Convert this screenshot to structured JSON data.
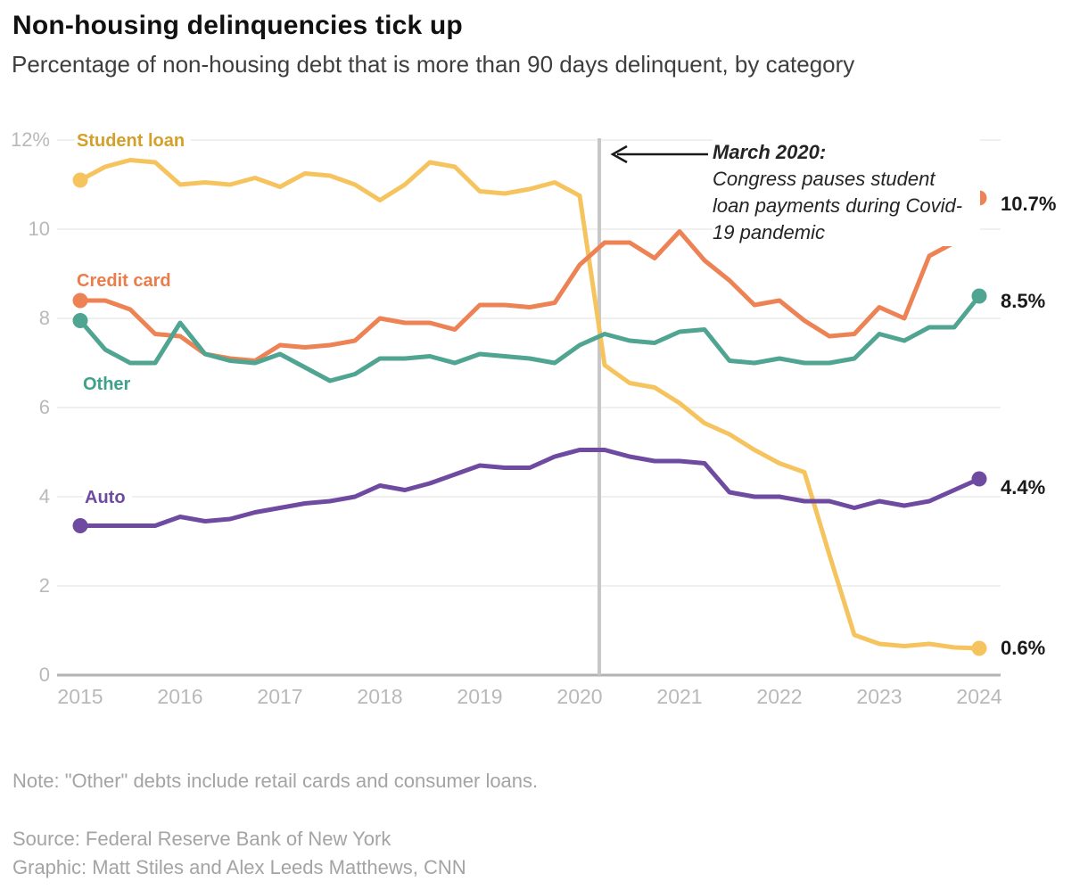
{
  "header": {
    "title": "Non-housing delinquencies tick up",
    "subtitle": "Percentage of non-housing debt that is more than 90 days delinquent, by category"
  },
  "chart_data": {
    "type": "line",
    "unit": "percent",
    "x_start": "2015 Q1",
    "x_end": "2024 Q1",
    "frequency": "quarterly",
    "grid": "horizontal-only",
    "x_axis": {
      "tick_labels": [
        "2015",
        "2016",
        "2017",
        "2018",
        "2019",
        "2020",
        "2021",
        "2022",
        "2023",
        "2024"
      ]
    },
    "y_axis": {
      "range": [
        0,
        12
      ],
      "ticks": [
        {
          "label": "12%",
          "value": 12
        },
        {
          "label": "10",
          "value": 10
        },
        {
          "label": "8",
          "value": 8
        },
        {
          "label": "6",
          "value": 6
        },
        {
          "label": "4",
          "value": 4
        },
        {
          "label": "2",
          "value": 2
        },
        {
          "label": "0",
          "value": 0
        }
      ]
    },
    "series": [
      {
        "name": "Student loan",
        "color": "#F6C45F",
        "label_color": "#D4A02A",
        "end_label": "0.6%",
        "values": [
          11.1,
          11.4,
          11.55,
          11.5,
          11.0,
          11.05,
          11.0,
          11.15,
          10.95,
          11.25,
          11.2,
          11.0,
          10.65,
          11.0,
          11.5,
          11.4,
          10.85,
          10.8,
          10.9,
          11.05,
          10.75,
          6.95,
          6.55,
          6.45,
          6.1,
          5.65,
          5.4,
          5.05,
          4.75,
          4.55,
          2.7,
          0.9,
          0.7,
          0.65,
          0.7,
          0.62,
          0.6
        ]
      },
      {
        "name": "Credit card",
        "color": "#ED8254",
        "label_color": "#EB7C4B",
        "end_label": "10.7%",
        "values": [
          8.4,
          8.4,
          8.2,
          7.65,
          7.6,
          7.2,
          7.1,
          7.05,
          7.4,
          7.35,
          7.4,
          7.5,
          8.0,
          7.9,
          7.9,
          7.75,
          8.3,
          8.3,
          8.25,
          8.35,
          9.2,
          9.7,
          9.7,
          9.35,
          9.95,
          9.3,
          8.85,
          8.3,
          8.4,
          7.95,
          7.6,
          7.65,
          8.25,
          8.0,
          9.4,
          9.7,
          10.7
        ]
      },
      {
        "name": "Other",
        "color": "#50A492",
        "label_color": "#3FA18B",
        "end_label": "8.5%",
        "values": [
          7.95,
          7.3,
          7.0,
          7.0,
          7.9,
          7.2,
          7.05,
          7.0,
          7.2,
          6.9,
          6.6,
          6.75,
          7.1,
          7.1,
          7.15,
          7.0,
          7.2,
          7.15,
          7.1,
          7.0,
          7.4,
          7.65,
          7.5,
          7.45,
          7.7,
          7.75,
          7.05,
          7.0,
          7.1,
          7.0,
          7.0,
          7.1,
          7.65,
          7.5,
          7.8,
          7.8,
          8.5
        ]
      },
      {
        "name": "Auto",
        "color": "#6E4AA1",
        "label_color": "#6E4AA1",
        "end_label": "4.4%",
        "values": [
          3.35,
          3.35,
          3.35,
          3.35,
          3.55,
          3.45,
          3.5,
          3.65,
          3.75,
          3.85,
          3.9,
          4.0,
          4.25,
          4.15,
          4.3,
          4.5,
          4.7,
          4.65,
          4.65,
          4.9,
          5.05,
          5.05,
          4.9,
          4.8,
          4.8,
          4.75,
          4.1,
          4.0,
          4.0,
          3.9,
          3.9,
          3.75,
          3.9,
          3.8,
          3.9,
          4.15,
          4.4
        ]
      }
    ],
    "annotation": {
      "heading": "March 2020:",
      "body": [
        "Congress pauses student",
        "loan payments during Covid-",
        "19 pandemic"
      ],
      "marker": "vertical line at March 2020"
    },
    "reference_line_color": "#c7c7c7",
    "gridline_color": "#ebebeb",
    "baseline_color": "#b3b3b3",
    "axis_text_color": "#b9b9b9"
  },
  "footer": {
    "note": "Note: \"Other\" debts include retail cards and consumer loans.",
    "source": "Source: Federal Reserve Bank of New York",
    "credit": "Graphic: Matt Stiles and Alex Leeds Matthews, CNN"
  }
}
